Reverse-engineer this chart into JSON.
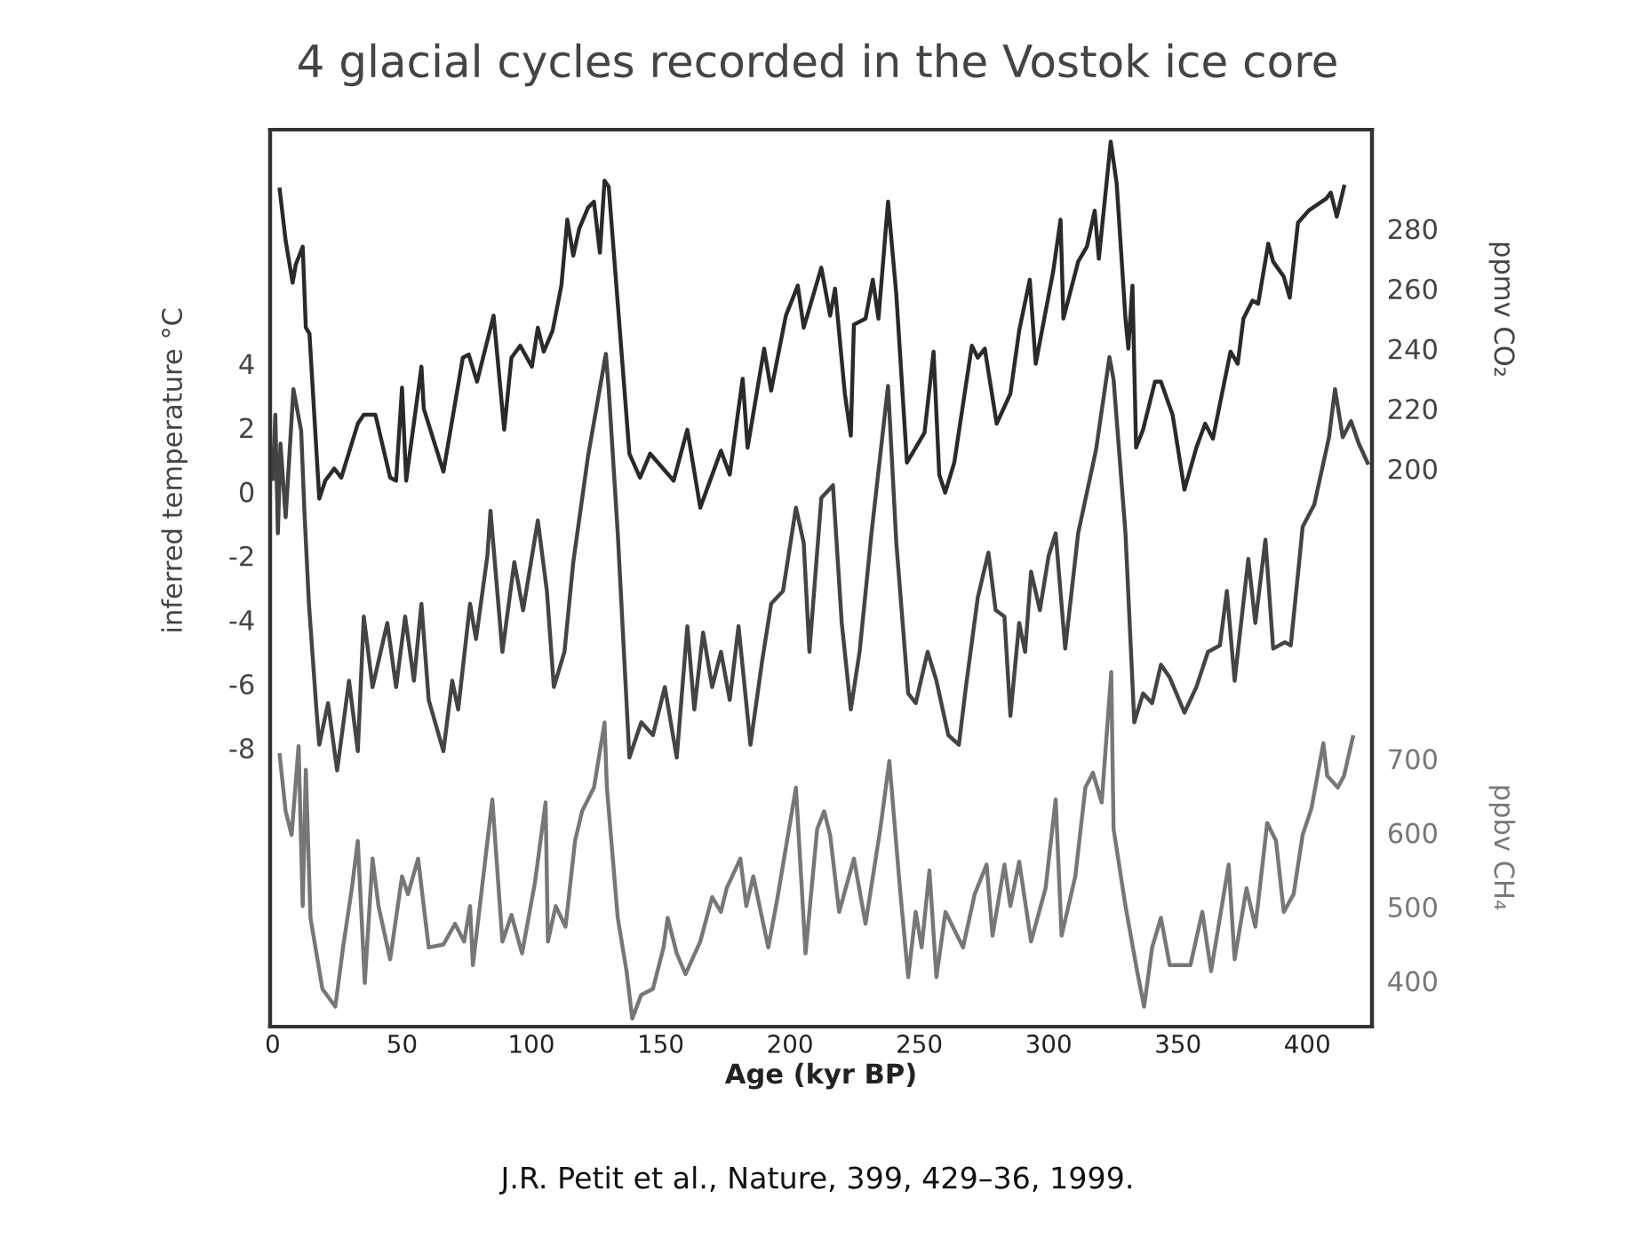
{
  "chart_data": {
    "type": "line",
    "title": "4 glacial cycles recorded in the Vostok ice core",
    "xlabel": "Age (kyr BP)",
    "ylabel": "inferred temperature °C",
    "y2label": "ppmv CO₂",
    "y3label": "ppbv CH₄",
    "xlim": [
      -1,
      425
    ],
    "xticks": [
      0,
      50,
      100,
      150,
      200,
      250,
      300,
      350,
      400
    ],
    "ylim": [
      -16.7,
      11.3
    ],
    "yticks": [
      -8,
      -6,
      -4,
      -2,
      0,
      2,
      4
    ],
    "y2lim": [
      14,
      313
    ],
    "y2ticks": [
      200,
      220,
      240,
      260,
      280
    ],
    "y3lim": [
      338,
      1550
    ],
    "y3ticks": [
      400,
      500,
      600,
      700
    ],
    "grid": false,
    "legend": false,
    "marker": "none",
    "line_style": "solid",
    "series": [
      {
        "axis": "y2",
        "color": "#2a2a2a",
        "x": [
          2.7,
          5,
          7.7,
          8.9,
          11.6,
          12.8,
          14.2,
          18,
          20.3,
          23.8,
          26.5,
          32.9,
          35.2,
          39.7,
          45.4,
          47.7,
          50,
          51.6,
          57.5,
          58.4,
          66,
          73.5,
          75.8,
          79,
          85.4,
          89.5,
          92.3,
          95.7,
          100.2,
          102.5,
          104.8,
          108.2,
          111.6,
          113.9,
          116.2,
          118.5,
          121.9,
          124.2,
          126.5,
          128.3,
          129.9,
          137.9,
          142,
          145.9,
          155,
          160.3,
          165.3,
          173.3,
          176.7,
          180.1,
          181.7,
          183.6,
          190,
          192.7,
          198.4,
          203,
          205.3,
          212.1,
          215.5,
          217.4,
          221.2,
          223.5,
          224.7,
          229.2,
          232,
          234.2,
          237.9,
          241.1,
          245.2,
          252,
          255.5,
          257.7,
          260,
          263.5,
          270.3,
          272.6,
          275.3,
          279.9,
          285.2,
          288.6,
          292.7,
          295,
          301.8,
          304.6,
          305.7,
          311.4,
          314.8,
          317.8,
          319.4,
          324,
          326.3,
          329.7,
          330.8,
          332.4,
          333.8,
          336.5,
          341.1,
          343.4,
          347.9,
          352.5,
          357.1,
          360.5,
          363.5,
          370.3,
          373.1,
          375.3,
          378.8,
          381,
          384.9,
          386.8,
          390.9,
          393.2,
          396.4,
          400.5,
          407.3,
          409.1,
          411.4,
          414.2
        ],
        "values": [
          293,
          276,
          262,
          268,
          274,
          247,
          245,
          190,
          196,
          200,
          197,
          215,
          218,
          218,
          197,
          196,
          227,
          196,
          234,
          220,
          199,
          237,
          238,
          229,
          251,
          213,
          237,
          241,
          234,
          247,
          239,
          246,
          261,
          283,
          271,
          280,
          287,
          289,
          272,
          296,
          294,
          205,
          197,
          205,
          196,
          213,
          187,
          206,
          198,
          220,
          230,
          207,
          240,
          226,
          251,
          261,
          247,
          267,
          251,
          260,
          225,
          211,
          248,
          250,
          263,
          250,
          289,
          258,
          202,
          212,
          239,
          198,
          192,
          202,
          241,
          237,
          240,
          215,
          225,
          246,
          263,
          235,
          266,
          283,
          250,
          269,
          274,
          286,
          270,
          309,
          295,
          250,
          240,
          261,
          207,
          213,
          229,
          229,
          218,
          193,
          207,
          215,
          210,
          239,
          235,
          250,
          256,
          255,
          275,
          269,
          264,
          257,
          282,
          286,
          290,
          292,
          284,
          294
        ]
      },
      {
        "axis": "y",
        "color": "#444444",
        "x": [
          0,
          1,
          2,
          3,
          5,
          8,
          11,
          12.3,
          14,
          16.9,
          18,
          21.4,
          24.9,
          29.5,
          32.9,
          35.2,
          38.6,
          44.3,
          47.7,
          51.2,
          54.6,
          57.5,
          60.3,
          66,
          69.4,
          71.7,
          76.3,
          78.6,
          83,
          84.2,
          88.8,
          93.4,
          96.8,
          102.5,
          106,
          108.7,
          112.8,
          116.2,
          121.9,
          128.8,
          129.9,
          133.4,
          137.9,
          142.5,
          147,
          151.6,
          156.2,
          160.3,
          163,
          166.4,
          169.9,
          173.3,
          176.7,
          180.1,
          184.7,
          189.2,
          192.7,
          197.3,
          202.3,
          205.3,
          207.5,
          212.1,
          216.6,
          220,
          223.5,
          226.9,
          231.5,
          237.9,
          241.1,
          245.7,
          248.6,
          253.2,
          256.6,
          261.2,
          265.3,
          268,
          272.6,
          276.7,
          279.5,
          282.9,
          285.2,
          288.6,
          290.9,
          293.2,
          296.6,
          300,
          302.7,
          306.4,
          311.4,
          318.3,
          323.5,
          325.1,
          329.7,
          333.1,
          336.5,
          340,
          343.4,
          346.8,
          352.5,
          357.1,
          361.6,
          366.2,
          368.9,
          371.9,
          377.2,
          379.9,
          383.8,
          386.8,
          391.3,
          393.6,
          397.1,
          398.2,
          402.7,
          408.4,
          410.7,
          413.7,
          416.9,
          419.9,
          423.3
        ],
        "values": [
          0.4,
          2.4,
          -1.3,
          1.5,
          -0.8,
          3.2,
          1.9,
          -0.7,
          -3.5,
          -6.8,
          -7.9,
          -6.6,
          -8.7,
          -5.9,
          -8.1,
          -3.9,
          -6.1,
          -4.1,
          -6.1,
          -3.9,
          -5.9,
          -3.5,
          -6.5,
          -8.1,
          -5.9,
          -6.8,
          -3.5,
          -4.6,
          -2,
          -0.6,
          -5,
          -2.2,
          -3.7,
          -0.9,
          -3.1,
          -6.1,
          -5,
          -2.2,
          1.1,
          4.3,
          3.2,
          -1.3,
          -8.3,
          -7.2,
          -7.6,
          -6.1,
          -8.3,
          -4.2,
          -6.8,
          -4.4,
          -6.1,
          -5,
          -6.5,
          -4.2,
          -7.9,
          -5.3,
          -3.5,
          -3.1,
          -0.5,
          -1.6,
          -5,
          -0.2,
          0.2,
          -4.1,
          -6.8,
          -5,
          -1.3,
          3.3,
          -1.6,
          -6.3,
          -6.6,
          -5,
          -5.9,
          -7.6,
          -7.9,
          -6.1,
          -3.3,
          -1.9,
          -3.7,
          -3.9,
          -7,
          -4.1,
          -5,
          -2.5,
          -3.7,
          -2,
          -1.3,
          -4.9,
          -1.3,
          1.3,
          4.2,
          3.5,
          -1.3,
          -7.2,
          -6.3,
          -6.6,
          -5.4,
          -5.8,
          -6.9,
          -6.1,
          -5,
          -4.8,
          -3.1,
          -5.9,
          -2.1,
          -4.1,
          -1.5,
          -4.9,
          -4.7,
          -4.8,
          -2,
          -1.1,
          -0.4,
          1.7,
          3.2,
          1.7,
          2.2,
          1.5,
          0.9
        ]
      },
      {
        "axis": "y3",
        "color": "#777777",
        "x": [
          2.7,
          5,
          7.3,
          10,
          11.6,
          12.8,
          14.6,
          19.2,
          24.2,
          27.2,
          30.6,
          32.9,
          35.6,
          38.6,
          40.9,
          45.4,
          50,
          52.3,
          56.2,
          60.3,
          66,
          70.5,
          74,
          76.3,
          77.4,
          84.9,
          88.8,
          92.3,
          96.4,
          101.4,
          105.5,
          106.4,
          109.4,
          113.2,
          116.9,
          119.6,
          124.2,
          128.3,
          129.2,
          133.4,
          136.8,
          139,
          142.5,
          147,
          151.1,
          152.7,
          156.2,
          159.6,
          165.3,
          169.9,
          173.3,
          175.5,
          180.8,
          183.1,
          185.8,
          191.6,
          195,
          202.3,
          206,
          210.5,
          213.2,
          215.5,
          219,
          224.7,
          229.2,
          234.9,
          238.4,
          242.5,
          245.7,
          248.6,
          250.9,
          253.9,
          256.6,
          260.1,
          266.9,
          271.4,
          276,
          278.3,
          282.9,
          285.2,
          288.6,
          293.2,
          298.8,
          302.7,
          305,
          310.3,
          314.2,
          317.1,
          320.5,
          324.2,
          325.1,
          329.7,
          334.2,
          336.9,
          340,
          343.4,
          346.8,
          354.8,
          359.4,
          362.8,
          369.6,
          371.9,
          376.5,
          379.9,
          384.5,
          387.9,
          390.9,
          394.7,
          398.2,
          401.6,
          406.2,
          407.7,
          411.8,
          414.2,
          417.6
        ],
        "values": [
          705,
          629,
          597,
          717,
          501,
          685,
          485,
          389,
          365,
          445,
          525,
          589,
          397,
          565,
          501,
          429,
          541,
          517,
          565,
          445,
          449,
          477,
          453,
          501,
          421,
          645,
          453,
          489,
          437,
          533,
          641,
          453,
          501,
          473,
          589,
          629,
          661,
          749,
          661,
          485,
          413,
          349,
          381,
          389,
          445,
          485,
          437,
          409,
          453,
          513,
          493,
          525,
          565,
          501,
          541,
          445,
          509,
          661,
          437,
          605,
          629,
          597,
          493,
          565,
          477,
          605,
          697,
          525,
          405,
          493,
          445,
          549,
          405,
          493,
          445,
          517,
          557,
          461,
          557,
          501,
          561,
          453,
          525,
          645,
          461,
          541,
          661,
          681,
          641,
          817,
          605,
          501,
          413,
          365,
          445,
          485,
          421,
          421,
          493,
          413,
          557,
          429,
          525,
          473,
          613,
          589,
          493,
          517,
          597,
          633,
          721,
          677,
          661,
          677,
          729
        ]
      }
    ],
    "annotations": [
      "J.R. Petit et al., Nature, 399, 429–36, 1999."
    ]
  }
}
